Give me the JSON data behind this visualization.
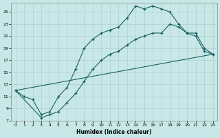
{
  "xlabel": "Humidex (Indice chaleur)",
  "bg_color": "#c8e8e8",
  "grid_color": "#b0d0d0",
  "line_color": "#1a6060",
  "xlim": [
    -0.5,
    23.5
  ],
  "ylim": [
    7,
    26.5
  ],
  "xticks": [
    0,
    1,
    2,
    3,
    4,
    5,
    6,
    7,
    8,
    9,
    10,
    11,
    12,
    13,
    14,
    15,
    16,
    17,
    18,
    19,
    20,
    21,
    22,
    23
  ],
  "yticks": [
    7,
    9,
    11,
    13,
    15,
    17,
    19,
    21,
    23,
    25
  ],
  "series1_x": [
    0,
    1,
    2,
    3,
    4,
    5,
    6,
    7,
    8,
    9,
    10,
    11,
    12,
    13,
    14,
    15,
    16,
    17,
    18,
    19,
    20,
    21,
    22,
    23
  ],
  "series1_y": [
    12,
    11,
    10.5,
    8,
    8.5,
    11,
    12.5,
    15.5,
    19,
    20.5,
    21.5,
    22,
    22.5,
    24,
    26,
    25.5,
    26,
    25.5,
    25,
    23,
    21.5,
    21,
    18.5,
    18
  ],
  "series2_x": [
    0,
    3,
    4,
    5,
    6,
    7,
    8,
    9,
    10,
    11,
    12,
    13,
    14,
    15,
    16,
    17,
    18,
    19,
    20,
    21,
    22,
    23
  ],
  "series2_y": [
    12,
    7.5,
    8,
    8.5,
    10,
    11.5,
    13.5,
    15.5,
    17,
    18,
    18.5,
    19.5,
    20.5,
    21,
    21.5,
    21.5,
    23,
    22.5,
    21.5,
    21.5,
    19,
    18
  ],
  "series3_x": [
    0,
    23
  ],
  "series3_y": [
    12,
    18
  ]
}
